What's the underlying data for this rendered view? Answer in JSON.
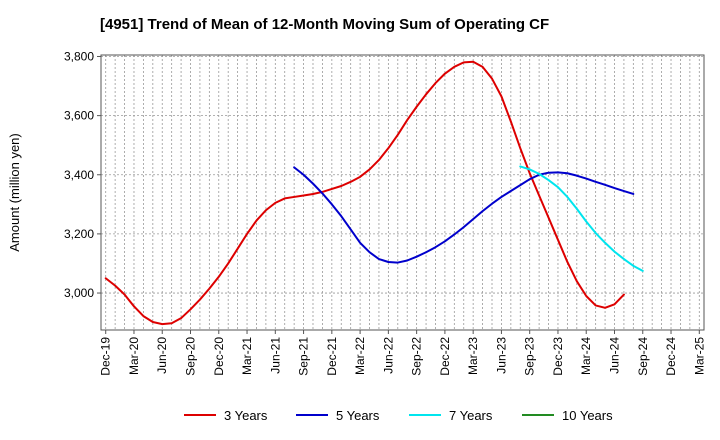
{
  "chart_data": {
    "type": "line",
    "title": "[4951]  Trend of Mean of 12-Month Moving Sum of Operating CF",
    "xlabel": "",
    "ylabel": "Amount (million yen)",
    "ylim": [
      2875,
      3805
    ],
    "y_ticks": [
      3000,
      3200,
      3400,
      3600,
      3800
    ],
    "y_tick_labels": [
      "3,000",
      "3,200",
      "3,400",
      "3,600",
      "3,800"
    ],
    "x_tick_labels": [
      "Dec-19",
      "Mar-20",
      "Jun-20",
      "Sep-20",
      "Dec-20",
      "Mar-21",
      "Jun-21",
      "Sep-21",
      "Dec-21",
      "Mar-22",
      "Jun-22",
      "Sep-22",
      "Dec-22",
      "Mar-23",
      "Jun-23",
      "Sep-23",
      "Dec-23",
      "Mar-24",
      "Jun-24",
      "Sep-24",
      "Dec-24",
      "Mar-25"
    ],
    "months": [
      "Dec-19",
      "Jan-20",
      "Feb-20",
      "Mar-20",
      "Apr-20",
      "May-20",
      "Jun-20",
      "Jul-20",
      "Aug-20",
      "Sep-20",
      "Oct-20",
      "Nov-20",
      "Dec-20",
      "Jan-21",
      "Feb-21",
      "Mar-21",
      "Apr-21",
      "May-21",
      "Jun-21",
      "Jul-21",
      "Aug-21",
      "Sep-21",
      "Oct-21",
      "Nov-21",
      "Dec-21",
      "Jan-22",
      "Feb-22",
      "Mar-22",
      "Apr-22",
      "May-22",
      "Jun-22",
      "Jul-22",
      "Aug-22",
      "Sep-22",
      "Oct-22",
      "Nov-22",
      "Dec-22",
      "Jan-23",
      "Feb-23",
      "Mar-23",
      "Apr-23",
      "May-23",
      "Jun-23",
      "Jul-23",
      "Aug-23",
      "Sep-23",
      "Oct-23",
      "Nov-23",
      "Dec-23",
      "Jan-24",
      "Feb-24",
      "Mar-24",
      "Apr-24",
      "May-24",
      "Jun-24",
      "Jul-24",
      "Aug-24",
      "Sep-24",
      "Oct-24",
      "Nov-24",
      "Dec-24",
      "Jan-25",
      "Feb-25",
      "Mar-25"
    ],
    "series": [
      {
        "name": "3 Years",
        "color": "#dd0000",
        "start_month": "Dec-19",
        "values": [
          3050,
          3025,
          2995,
          2955,
          2922,
          2902,
          2895,
          2898,
          2915,
          2945,
          2978,
          3015,
          3055,
          3100,
          3150,
          3200,
          3245,
          3280,
          3305,
          3320,
          3325,
          3330,
          3335,
          3342,
          3352,
          3362,
          3376,
          3393,
          3418,
          3450,
          3490,
          3535,
          3585,
          3630,
          3672,
          3710,
          3742,
          3765,
          3780,
          3782,
          3765,
          3725,
          3665,
          3580,
          3490,
          3405,
          3330,
          3255,
          3180,
          3105,
          3040,
          2990,
          2958,
          2950,
          2962,
          2995
        ]
      },
      {
        "name": "5 Years",
        "color": "#0000cc",
        "start_month": "Aug-21",
        "values": [
          3425,
          3400,
          3370,
          3337,
          3300,
          3260,
          3215,
          3170,
          3138,
          3115,
          3105,
          3103,
          3110,
          3123,
          3138,
          3155,
          3175,
          3198,
          3223,
          3250,
          3277,
          3302,
          3325,
          3345,
          3365,
          3385,
          3400,
          3407,
          3408,
          3405,
          3397,
          3387,
          3376,
          3366,
          3355,
          3345,
          3335
        ]
      },
      {
        "name": "7 Years",
        "color": "#00e5ee",
        "start_month": "Aug-23",
        "values": [
          3428,
          3418,
          3403,
          3382,
          3358,
          3325,
          3285,
          3242,
          3203,
          3170,
          3140,
          3115,
          3092,
          3075
        ]
      },
      {
        "name": "10 Years",
        "color": "#228b22",
        "start_month": "Dec-19",
        "values": []
      }
    ],
    "grid": true,
    "legend_position": "bottom"
  }
}
